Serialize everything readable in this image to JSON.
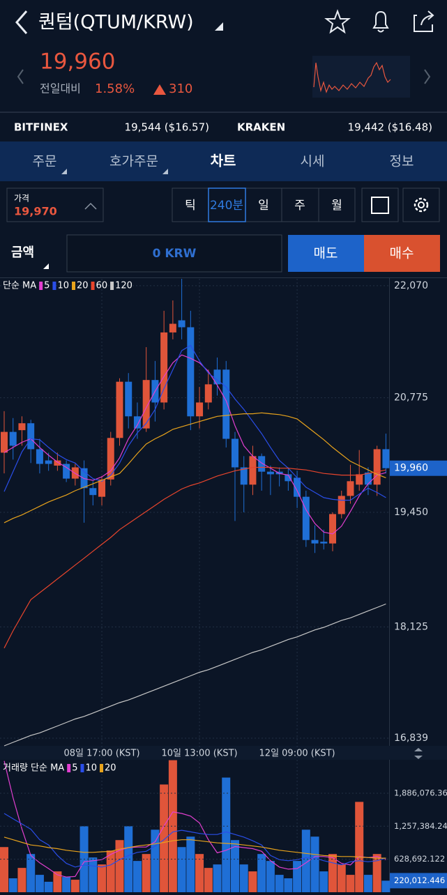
{
  "header": {
    "title": "퀀텀(QTUM/KRW)"
  },
  "summary": {
    "price": "19,960",
    "change_label": "전일대비",
    "change_pct": "1.58%",
    "change_abs": "310"
  },
  "exchanges": [
    {
      "name": "BITFINEX",
      "price": "19,544 ($16.57)"
    },
    {
      "name": "KRAKEN",
      "price": "19,442 ($16.48)"
    }
  ],
  "tabs": [
    "주문",
    "호가주문",
    "차트",
    "시세",
    "정보"
  ],
  "order": {
    "price_label": "가격",
    "price": "19,970",
    "intervals": [
      "틱",
      "240분",
      "일",
      "주",
      "월"
    ],
    "amount_label": "금액",
    "amount": "0 KRW",
    "sell": "매도",
    "buy": "매수"
  },
  "chart_data": [
    {
      "type": "candlestick",
      "legend_title": "단순 MA",
      "up_color": "#e0553a",
      "down_color": "#1f6fd6",
      "categories": [
        null,
        null,
        null,
        null,
        null,
        null,
        null,
        null,
        null,
        null,
        null,
        "08일 17:00 (KST)",
        null,
        null,
        null,
        null,
        null,
        null,
        null,
        null,
        null,
        null,
        "10일 13:00 (KST)",
        null,
        null,
        null,
        null,
        null,
        null,
        null,
        null,
        null,
        null,
        "12일 09:00 (KST)",
        null,
        null,
        null,
        null,
        null,
        null,
        null,
        null,
        null,
        null
      ],
      "open": [
        20140,
        20380,
        20400,
        20480,
        20180,
        20050,
        19990,
        20010,
        19840,
        19960,
        19730,
        19630,
        19830,
        20310,
        20960,
        20560,
        20420,
        20980,
        20720,
        21530,
        21670,
        21590,
        20560,
        20720,
        21100,
        21100,
        20300,
        19970,
        19770,
        20100,
        19920,
        19920,
        19890,
        19850,
        19630,
        19130,
        19110,
        19090,
        19430,
        19640,
        19770,
        19910,
        19770,
        20180
      ],
      "high": [
        20620,
        20540,
        20560,
        20520,
        20300,
        20140,
        20140,
        20050,
        20010,
        20050,
        19810,
        19870,
        20380,
        21000,
        21060,
        20720,
        21360,
        21200,
        21780,
        21900,
        22150,
        21780,
        20900,
        21100,
        21240,
        21200,
        20380,
        20100,
        20220,
        20130,
        19990,
        19970,
        19970,
        19930,
        19700,
        19300,
        19250,
        19450,
        19700,
        20000,
        20170,
        19970,
        20220,
        20360
      ],
      "low": [
        19900,
        20060,
        20220,
        20020,
        19900,
        19930,
        19930,
        19800,
        19760,
        19330,
        19530,
        19530,
        19760,
        20220,
        20420,
        20300,
        20380,
        20500,
        20640,
        21450,
        21450,
        20400,
        20420,
        20640,
        20800,
        20200,
        19350,
        19450,
        19650,
        19700,
        19650,
        19750,
        19700,
        19500,
        19050,
        18980,
        19020,
        19000,
        19380,
        19550,
        19700,
        19650,
        19640,
        19900
      ],
      "close": [
        20380,
        20220,
        20480,
        20180,
        20010,
        20010,
        20050,
        19840,
        19970,
        19730,
        19650,
        19830,
        20310,
        20960,
        20560,
        20420,
        20980,
        20720,
        21530,
        21630,
        21590,
        20560,
        20720,
        20930,
        20930,
        20300,
        19970,
        19770,
        20100,
        19920,
        19890,
        19890,
        19810,
        19630,
        19130,
        19090,
        19090,
        19430,
        19640,
        19810,
        19890,
        19770,
        20180,
        19960
      ],
      "series": [
        {
          "name": "5",
          "color": "#e23fd0",
          "values": [
            20140,
            20200,
            20260,
            20300,
            20200,
            20110,
            20030,
            19970,
            19900,
            19840,
            19820,
            19860,
            19930,
            20080,
            20300,
            20460,
            20660,
            20850,
            21020,
            21180,
            21270,
            21230,
            21180,
            21080,
            20920,
            20740,
            20450,
            20220,
            20100,
            20020,
            19960,
            19900,
            19880,
            19700,
            19480,
            19320,
            19220,
            19200,
            19290,
            19460,
            19640,
            19780,
            19880,
            19910
          ]
        },
        {
          "name": "10",
          "color": "#2a4ee8",
          "values": [
            19690,
            19920,
            20150,
            20300,
            20290,
            20200,
            20120,
            20060,
            20020,
            19920,
            19840,
            19810,
            19880,
            20020,
            20220,
            20370,
            20480,
            20640,
            20880,
            21100,
            21320,
            21380,
            21200,
            21060,
            20980,
            20900,
            20760,
            20640,
            20500,
            20360,
            20200,
            20050,
            19960,
            19850,
            19740,
            19680,
            19620,
            19600,
            19590,
            19590,
            19660,
            19730,
            19680,
            19620
          ]
        },
        {
          "name": "20",
          "color": "#e8a31c",
          "values": [
            19330,
            19380,
            19420,
            19470,
            19520,
            19570,
            19610,
            19650,
            19700,
            19740,
            19780,
            19820,
            19860,
            19900,
            20010,
            20130,
            20240,
            20300,
            20350,
            20410,
            20440,
            20470,
            20500,
            20530,
            20560,
            20570,
            20580,
            20590,
            20590,
            20600,
            20590,
            20580,
            20560,
            20530,
            20450,
            20370,
            20290,
            20200,
            20120,
            20040,
            19990,
            19940,
            19890,
            19850
          ]
        },
        {
          "name": "60",
          "color": "#e8452c",
          "values": [
            17880,
            18080,
            18260,
            18440,
            18520,
            18600,
            18680,
            18760,
            18840,
            18920,
            19000,
            19080,
            19160,
            19250,
            19320,
            19390,
            19460,
            19530,
            19600,
            19660,
            19720,
            19760,
            19790,
            19830,
            19870,
            19900,
            19930,
            19950,
            19970,
            19970,
            19970,
            19960,
            19960,
            19950,
            19940,
            19920,
            19900,
            19890,
            19880,
            19880,
            19880,
            19900,
            19920,
            19940
          ]
        },
        {
          "name": "120",
          "color": "#c8c8c8",
          "values": [
            16750,
            16790,
            16830,
            16870,
            16900,
            16940,
            16980,
            17020,
            17060,
            17090,
            17130,
            17170,
            17210,
            17250,
            17280,
            17320,
            17360,
            17400,
            17440,
            17480,
            17520,
            17560,
            17600,
            17630,
            17670,
            17710,
            17750,
            17790,
            17830,
            17860,
            17900,
            17940,
            17980,
            18010,
            18050,
            18090,
            18120,
            18160,
            18200,
            18230,
            18270,
            18310,
            18350,
            18390
          ]
        }
      ],
      "ylim": [
        16750,
        22150
      ],
      "yticks": [
        {
          "value": 22070,
          "label": "22,070"
        },
        {
          "value": 20775,
          "label": "20,775"
        },
        {
          "value": 19450,
          "label": "19,450"
        },
        {
          "value": 18125,
          "label": "18,125"
        },
        {
          "value": 16839,
          "label": "16,839"
        }
      ],
      "current": {
        "value": 19960,
        "label": "19,960"
      },
      "grid": true
    },
    {
      "type": "bar",
      "legend_title": "거래량 단순 MA",
      "values": [
        860000,
        265000,
        463000,
        728000,
        331000,
        199000,
        397000,
        291000,
        238000,
        1257000,
        662000,
        529000,
        794000,
        993000,
        1257000,
        596000,
        728000,
        1191000,
        2052000,
        2515000,
        860000,
        1059000,
        728000,
        463000,
        529000,
        2184000,
        993000,
        529000,
        397000,
        728000,
        596000,
        331000,
        265000,
        596000,
        1191000,
        1059000,
        397000,
        728000,
        529000,
        331000,
        1721000,
        331000,
        728000,
        220012.446
      ],
      "series": [
        {
          "name": "5",
          "color": "#e23fd0",
          "values": [
            2500000,
            1800000,
            1200000,
            700000,
            560000,
            450000,
            330000,
            290000,
            300000,
            580000,
            600000,
            620000,
            720000,
            800000,
            850000,
            860000,
            860000,
            960000,
            1260000,
            1530000,
            1500000,
            1450000,
            1320000,
            1000000,
            750000,
            800000,
            870000,
            850000,
            830000,
            780000,
            600000,
            480000,
            440000,
            450000,
            560000,
            680000,
            680000,
            660000,
            550000,
            520000,
            680000,
            660000,
            680000,
            620000
          ]
        },
        {
          "name": "10",
          "color": "#2a4ee8",
          "values": [
            1500000,
            1400000,
            1300000,
            1200000,
            1000000,
            900000,
            700000,
            550000,
            480000,
            520000,
            500000,
            480000,
            520000,
            620000,
            700000,
            760000,
            780000,
            880000,
            1000000,
            1150000,
            1180000,
            1150000,
            1120000,
            1100000,
            1100000,
            1150000,
            1100000,
            1050000,
            980000,
            900000,
            700000,
            620000,
            600000,
            620000,
            660000,
            650000,
            600000,
            560000,
            520000,
            580000,
            600000,
            580000,
            600000,
            650000
          ]
        },
        {
          "name": "20",
          "color": "#e8a31c",
          "values": [
            1050000,
            1000000,
            950000,
            900000,
            880000,
            850000,
            830000,
            800000,
            780000,
            760000,
            760000,
            770000,
            780000,
            820000,
            850000,
            880000,
            900000,
            920000,
            950000,
            980000,
            1000000,
            1000000,
            980000,
            960000,
            940000,
            930000,
            920000,
            900000,
            880000,
            860000,
            830000,
            800000,
            780000,
            760000,
            740000,
            720000,
            700000,
            690000,
            680000,
            680000,
            670000,
            660000,
            650000,
            650000
          ]
        }
      ],
      "ylim": [
        0,
        2523000
      ],
      "yticks": [
        {
          "value": 1886076.366,
          "label": "1,886,076.366"
        },
        {
          "value": 1257384.244,
          "label": "1,257,384.244"
        },
        {
          "value": 628692.122,
          "label": "628,692.122"
        }
      ],
      "current": {
        "value": 220012.446,
        "label": "220,012.446"
      },
      "grid": true
    }
  ]
}
